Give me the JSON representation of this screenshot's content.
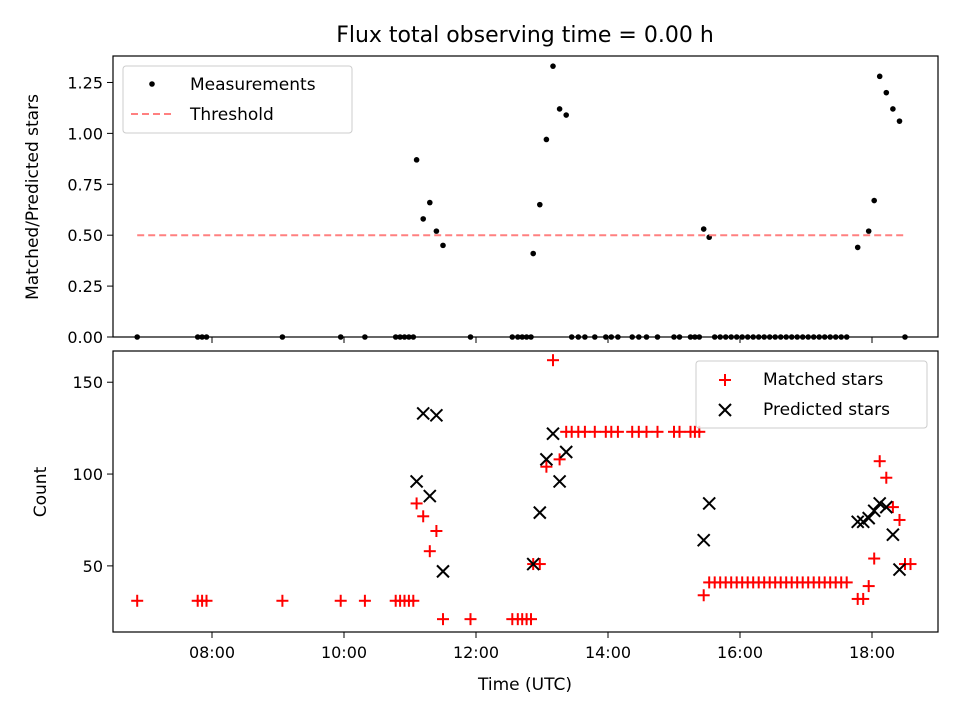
{
  "figure": {
    "title": "Flux total observing time = 0.00 h",
    "xlabel": "Time (UTC)"
  },
  "chart_data": [
    {
      "type": "scatter",
      "ylabel": "Matched/Predicted stars",
      "xlim": [
        "06:30",
        "19:00"
      ],
      "ylim": [
        0,
        1.38
      ],
      "xticks": [
        "08:00",
        "10:00",
        "12:00",
        "14:00",
        "16:00",
        "18:00"
      ],
      "yticks": [
        "0.00",
        "0.25",
        "0.50",
        "0.75",
        "1.00",
        "1.25"
      ],
      "grid": false,
      "legend_position": "top-left",
      "series": [
        {
          "name": "Measurements",
          "marker": "dot",
          "color": "#000000",
          "points": [
            [
              "06:52",
              0
            ],
            [
              "07:47",
              0
            ],
            [
              "07:51",
              0
            ],
            [
              "07:55",
              0
            ],
            [
              "09:04",
              0
            ],
            [
              "09:57",
              0
            ],
            [
              "10:19",
              0
            ],
            [
              "10:47",
              0
            ],
            [
              "10:51",
              0
            ],
            [
              "10:55",
              0
            ],
            [
              "10:59",
              0
            ],
            [
              "11:03",
              0
            ],
            [
              "11:06",
              0.87
            ],
            [
              "11:12",
              0.58
            ],
            [
              "11:18",
              0.66
            ],
            [
              "11:24",
              0.52
            ],
            [
              "11:30",
              0.45
            ],
            [
              "11:55",
              0
            ],
            [
              "12:33",
              0
            ],
            [
              "12:38",
              0
            ],
            [
              "12:42",
              0
            ],
            [
              "12:46",
              0
            ],
            [
              "12:50",
              0
            ],
            [
              "12:52",
              0.41
            ],
            [
              "12:58",
              0.65
            ],
            [
              "13:04",
              0.97
            ],
            [
              "13:10",
              1.33
            ],
            [
              "13:16",
              1.12
            ],
            [
              "13:22",
              1.09
            ],
            [
              "13:27",
              0
            ],
            [
              "13:33",
              0
            ],
            [
              "13:39",
              0
            ],
            [
              "13:48",
              0
            ],
            [
              "13:58",
              0
            ],
            [
              "14:03",
              0
            ],
            [
              "14:09",
              0
            ],
            [
              "14:22",
              0
            ],
            [
              "14:28",
              0
            ],
            [
              "14:35",
              0
            ],
            [
              "14:45",
              0
            ],
            [
              "15:00",
              0
            ],
            [
              "15:05",
              0
            ],
            [
              "15:15",
              0
            ],
            [
              "15:19",
              0
            ],
            [
              "15:23",
              0
            ],
            [
              "15:27",
              0.53
            ],
            [
              "15:32",
              0.49
            ],
            [
              "15:37",
              0
            ],
            [
              "15:42",
              0
            ],
            [
              "15:47",
              0
            ],
            [
              "15:52",
              0
            ],
            [
              "15:57",
              0
            ],
            [
              "16:02",
              0
            ],
            [
              "16:07",
              0
            ],
            [
              "16:12",
              0
            ],
            [
              "16:17",
              0
            ],
            [
              "16:22",
              0
            ],
            [
              "16:27",
              0
            ],
            [
              "16:32",
              0
            ],
            [
              "16:37",
              0
            ],
            [
              "16:42",
              0
            ],
            [
              "16:47",
              0
            ],
            [
              "16:52",
              0
            ],
            [
              "16:57",
              0
            ],
            [
              "17:02",
              0
            ],
            [
              "17:07",
              0
            ],
            [
              "17:12",
              0
            ],
            [
              "17:17",
              0
            ],
            [
              "17:22",
              0
            ],
            [
              "17:27",
              0
            ],
            [
              "17:32",
              0
            ],
            [
              "17:37",
              0
            ],
            [
              "17:47",
              0.44
            ],
            [
              "17:57",
              0.52
            ],
            [
              "18:02",
              0.67
            ],
            [
              "18:07",
              1.28
            ],
            [
              "18:13",
              1.2
            ],
            [
              "18:19",
              1.12
            ],
            [
              "18:25",
              1.06
            ],
            [
              "18:30",
              0
            ]
          ]
        },
        {
          "name": "Threshold",
          "line_style": "dashed",
          "color": "#ff8080",
          "points": [
            [
              "06:52",
              0.5
            ],
            [
              "18:30",
              0.5
            ]
          ]
        }
      ]
    },
    {
      "type": "scatter",
      "ylabel": "Count",
      "xlim": [
        "06:30",
        "19:00"
      ],
      "ylim": [
        14,
        167
      ],
      "xticks": [
        "08:00",
        "10:00",
        "12:00",
        "14:00",
        "16:00",
        "18:00"
      ],
      "yticks": [
        "50",
        "100",
        "150"
      ],
      "grid": false,
      "legend_position": "top-right",
      "series": [
        {
          "name": "Matched stars",
          "marker": "plus",
          "color": "#ff0000",
          "points": [
            [
              "06:52",
              31
            ],
            [
              "07:47",
              31
            ],
            [
              "07:51",
              31
            ],
            [
              "07:55",
              31
            ],
            [
              "09:04",
              31
            ],
            [
              "09:57",
              31
            ],
            [
              "10:19",
              31
            ],
            [
              "10:47",
              31
            ],
            [
              "10:51",
              31
            ],
            [
              "10:55",
              31
            ],
            [
              "10:59",
              31
            ],
            [
              "11:03",
              31
            ],
            [
              "11:06",
              84
            ],
            [
              "11:12",
              77
            ],
            [
              "11:18",
              58
            ],
            [
              "11:24",
              69
            ],
            [
              "11:30",
              21
            ],
            [
              "11:55",
              21
            ],
            [
              "12:33",
              21
            ],
            [
              "12:38",
              21
            ],
            [
              "12:42",
              21
            ],
            [
              "12:46",
              21
            ],
            [
              "12:50",
              21
            ],
            [
              "12:52",
              51
            ],
            [
              "12:58",
              51
            ],
            [
              "13:04",
              104
            ],
            [
              "13:10",
              162
            ],
            [
              "13:16",
              108
            ],
            [
              "13:22",
              123
            ],
            [
              "13:27",
              123
            ],
            [
              "13:33",
              123
            ],
            [
              "13:39",
              123
            ],
            [
              "13:48",
              123
            ],
            [
              "13:58",
              123
            ],
            [
              "14:03",
              123
            ],
            [
              "14:09",
              123
            ],
            [
              "14:22",
              123
            ],
            [
              "14:28",
              123
            ],
            [
              "14:35",
              123
            ],
            [
              "14:45",
              123
            ],
            [
              "15:00",
              123
            ],
            [
              "15:05",
              123
            ],
            [
              "15:15",
              123
            ],
            [
              "15:19",
              123
            ],
            [
              "15:23",
              123
            ],
            [
              "15:27",
              34
            ],
            [
              "15:32",
              41
            ],
            [
              "15:37",
              41
            ],
            [
              "15:42",
              41
            ],
            [
              "15:47",
              41
            ],
            [
              "15:52",
              41
            ],
            [
              "15:57",
              41
            ],
            [
              "16:02",
              41
            ],
            [
              "16:07",
              41
            ],
            [
              "16:12",
              41
            ],
            [
              "16:17",
              41
            ],
            [
              "16:22",
              41
            ],
            [
              "16:27",
              41
            ],
            [
              "16:32",
              41
            ],
            [
              "16:37",
              41
            ],
            [
              "16:42",
              41
            ],
            [
              "16:47",
              41
            ],
            [
              "16:52",
              41
            ],
            [
              "16:57",
              41
            ],
            [
              "17:02",
              41
            ],
            [
              "17:07",
              41
            ],
            [
              "17:12",
              41
            ],
            [
              "17:17",
              41
            ],
            [
              "17:22",
              41
            ],
            [
              "17:27",
              41
            ],
            [
              "17:32",
              41
            ],
            [
              "17:37",
              41
            ],
            [
              "17:47",
              32
            ],
            [
              "17:52",
              32
            ],
            [
              "17:57",
              39
            ],
            [
              "18:02",
              54
            ],
            [
              "18:07",
              107
            ],
            [
              "18:13",
              98
            ],
            [
              "18:19",
              82
            ],
            [
              "18:25",
              75
            ],
            [
              "18:30",
              51
            ],
            [
              "18:35",
              51
            ]
          ]
        },
        {
          "name": "Predicted stars",
          "marker": "x",
          "color": "#000000",
          "points": [
            [
              "11:06",
              96
            ],
            [
              "11:12",
              133
            ],
            [
              "11:18",
              88
            ],
            [
              "11:24",
              132
            ],
            [
              "11:30",
              47
            ],
            [
              "12:52",
              51
            ],
            [
              "12:58",
              79
            ],
            [
              "13:04",
              108
            ],
            [
              "13:10",
              122
            ],
            [
              "13:16",
              96
            ],
            [
              "13:22",
              112
            ],
            [
              "15:27",
              64
            ],
            [
              "15:32",
              84
            ],
            [
              "17:47",
              74
            ],
            [
              "17:52",
              74
            ],
            [
              "17:57",
              76
            ],
            [
              "18:02",
              80
            ],
            [
              "18:07",
              84
            ],
            [
              "18:13",
              82
            ],
            [
              "18:19",
              67
            ],
            [
              "18:25",
              48
            ]
          ]
        }
      ]
    }
  ]
}
